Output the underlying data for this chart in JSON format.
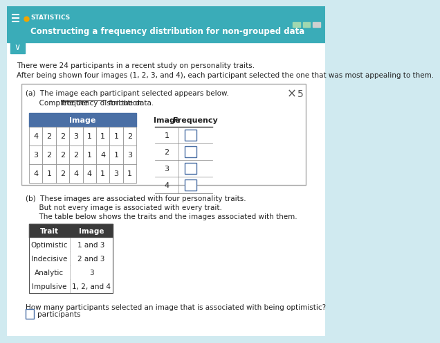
{
  "bg_color": "#d0eaf0",
  "header_bg": "#3aacb8",
  "header_text_color": "#ffffff",
  "body_bg": "#ffffff",
  "title_stats": "STATISTICS",
  "title_main": "Constructing a frequency distribution for non-grouped data",
  "intro_line1": "There were 24 participants in a recent study on personality traits.",
  "intro_line2": "After being shown four images (1, 2, 3, and 4), each participant selected the one that was most appealing to them.",
  "part_a_line1": "(a)  The image each participant selected appears below.",
  "part_a_line2_pre": "      Complete the ",
  "part_a_line2_link": "frequency distribution",
  "part_a_line2_post": " for the data.",
  "data_rows": [
    [
      "4",
      "2",
      "2",
      "3",
      "1",
      "1",
      "1",
      "2"
    ],
    [
      "3",
      "2",
      "2",
      "2",
      "1",
      "4",
      "1",
      "3"
    ],
    [
      "4",
      "1",
      "2",
      "4",
      "4",
      "1",
      "3",
      "1"
    ]
  ],
  "freq_header": [
    "Image",
    "Frequency"
  ],
  "freq_rows": [
    "1",
    "2",
    "3",
    "4"
  ],
  "image_table_header": "Image",
  "part_b_line1": "(b)  These images are associated with four personality traits.",
  "part_b_line2": "      But not every image is associated with every trait.",
  "part_b_line3": "      The table below shows the traits and the images associated with them.",
  "trait_header": [
    "Trait",
    "Image"
  ],
  "trait_rows": [
    [
      "Optimistic",
      "1 and 3"
    ],
    [
      "Indecisive",
      "2 and 3"
    ],
    [
      "Analytic",
      "3"
    ],
    [
      "Impulsive",
      "1, 2, and 4"
    ]
  ],
  "question": "How many participants selected an image that is associated with being optimistic?",
  "answer_label": "participants",
  "orange_dot_color": "#f0a500",
  "teal_color": "#3aacb8",
  "table_header_bg": "#4a6fa5",
  "progress_colors": [
    "#a0d8b0",
    "#a0d8b0",
    "#d0d0d0"
  ]
}
